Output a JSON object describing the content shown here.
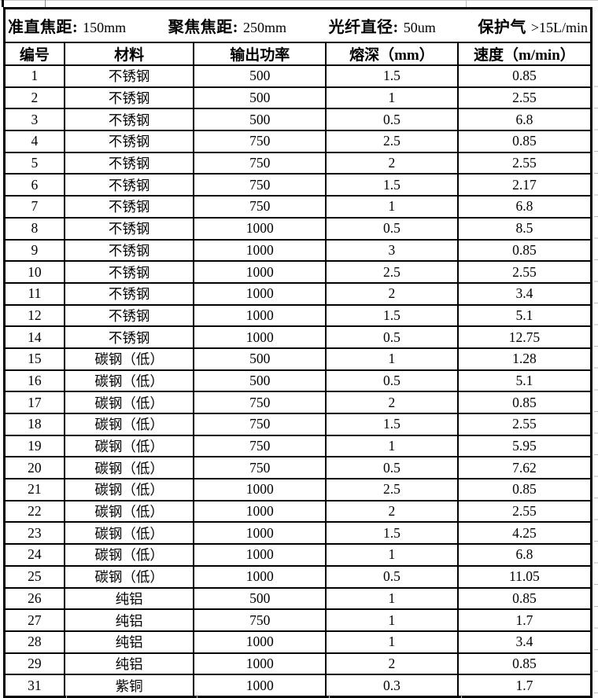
{
  "info_bar": {
    "items": [
      {
        "label": "准直焦距:",
        "value": "150mm"
      },
      {
        "label": "聚焦焦距:",
        "value": "250mm"
      },
      {
        "label": "光纤直径:",
        "value": "50um"
      },
      {
        "label": "保护气",
        "value": ">15L/min"
      }
    ]
  },
  "table": {
    "columns": [
      "编号",
      "材料",
      "输出功率",
      "熔深（mm）",
      "速度（m/min）"
    ],
    "rows": [
      [
        "1",
        "不锈钢",
        "500",
        "1.5",
        "0.85"
      ],
      [
        "2",
        "不锈钢",
        "500",
        "1",
        "2.55"
      ],
      [
        "3",
        "不锈钢",
        "500",
        "0.5",
        "6.8"
      ],
      [
        "4",
        "不锈钢",
        "750",
        "2.5",
        "0.85"
      ],
      [
        "5",
        "不锈钢",
        "750",
        "2",
        "2.55"
      ],
      [
        "6",
        "不锈钢",
        "750",
        "1.5",
        "2.17"
      ],
      [
        "7",
        "不锈钢",
        "750",
        "1",
        "6.8"
      ],
      [
        "8",
        "不锈钢",
        "1000",
        "0.5",
        "8.5"
      ],
      [
        "9",
        "不锈钢",
        "1000",
        "3",
        "0.85"
      ],
      [
        "10",
        "不锈钢",
        "1000",
        "2.5",
        "2.55"
      ],
      [
        "11",
        "不锈钢",
        "1000",
        "2",
        "3.4"
      ],
      [
        "12",
        "不锈钢",
        "1000",
        "1.5",
        "5.1"
      ],
      [
        "14",
        "不锈钢",
        "1000",
        "0.5",
        "12.75"
      ],
      [
        "15",
        "碳钢（低）",
        "500",
        "1",
        "1.28"
      ],
      [
        "16",
        "碳钢（低）",
        "500",
        "0.5",
        "5.1"
      ],
      [
        "17",
        "碳钢（低）",
        "750",
        "2",
        "0.85"
      ],
      [
        "18",
        "碳钢（低）",
        "750",
        "1.5",
        "2.55"
      ],
      [
        "19",
        "碳钢（低）",
        "750",
        "1",
        "5.95"
      ],
      [
        "20",
        "碳钢（低）",
        "750",
        "0.5",
        "7.62"
      ],
      [
        "21",
        "碳钢（低）",
        "1000",
        "2.5",
        "0.85"
      ],
      [
        "22",
        "碳钢（低）",
        "1000",
        "2",
        "2.55"
      ],
      [
        "23",
        "碳钢（低）",
        "1000",
        "1.5",
        "4.25"
      ],
      [
        "24",
        "碳钢（低）",
        "1000",
        "1",
        "6.8"
      ],
      [
        "25",
        "碳钢（低）",
        "1000",
        "0.5",
        "11.05"
      ],
      [
        "26",
        "纯铝",
        "500",
        "1",
        "0.85"
      ],
      [
        "27",
        "纯铝",
        "750",
        "1",
        "1.7"
      ],
      [
        "28",
        "纯铝",
        "1000",
        "1",
        "3.4"
      ],
      [
        "29",
        "纯铝",
        "1000",
        "2",
        "0.85"
      ],
      [
        "31",
        "紫铜",
        "1000",
        "0.3",
        "1.7"
      ]
    ]
  },
  "colors": {
    "border": "#000000",
    "text": "#000000",
    "background": "#ffffff",
    "faint_gridline": "#bdbdbd"
  }
}
